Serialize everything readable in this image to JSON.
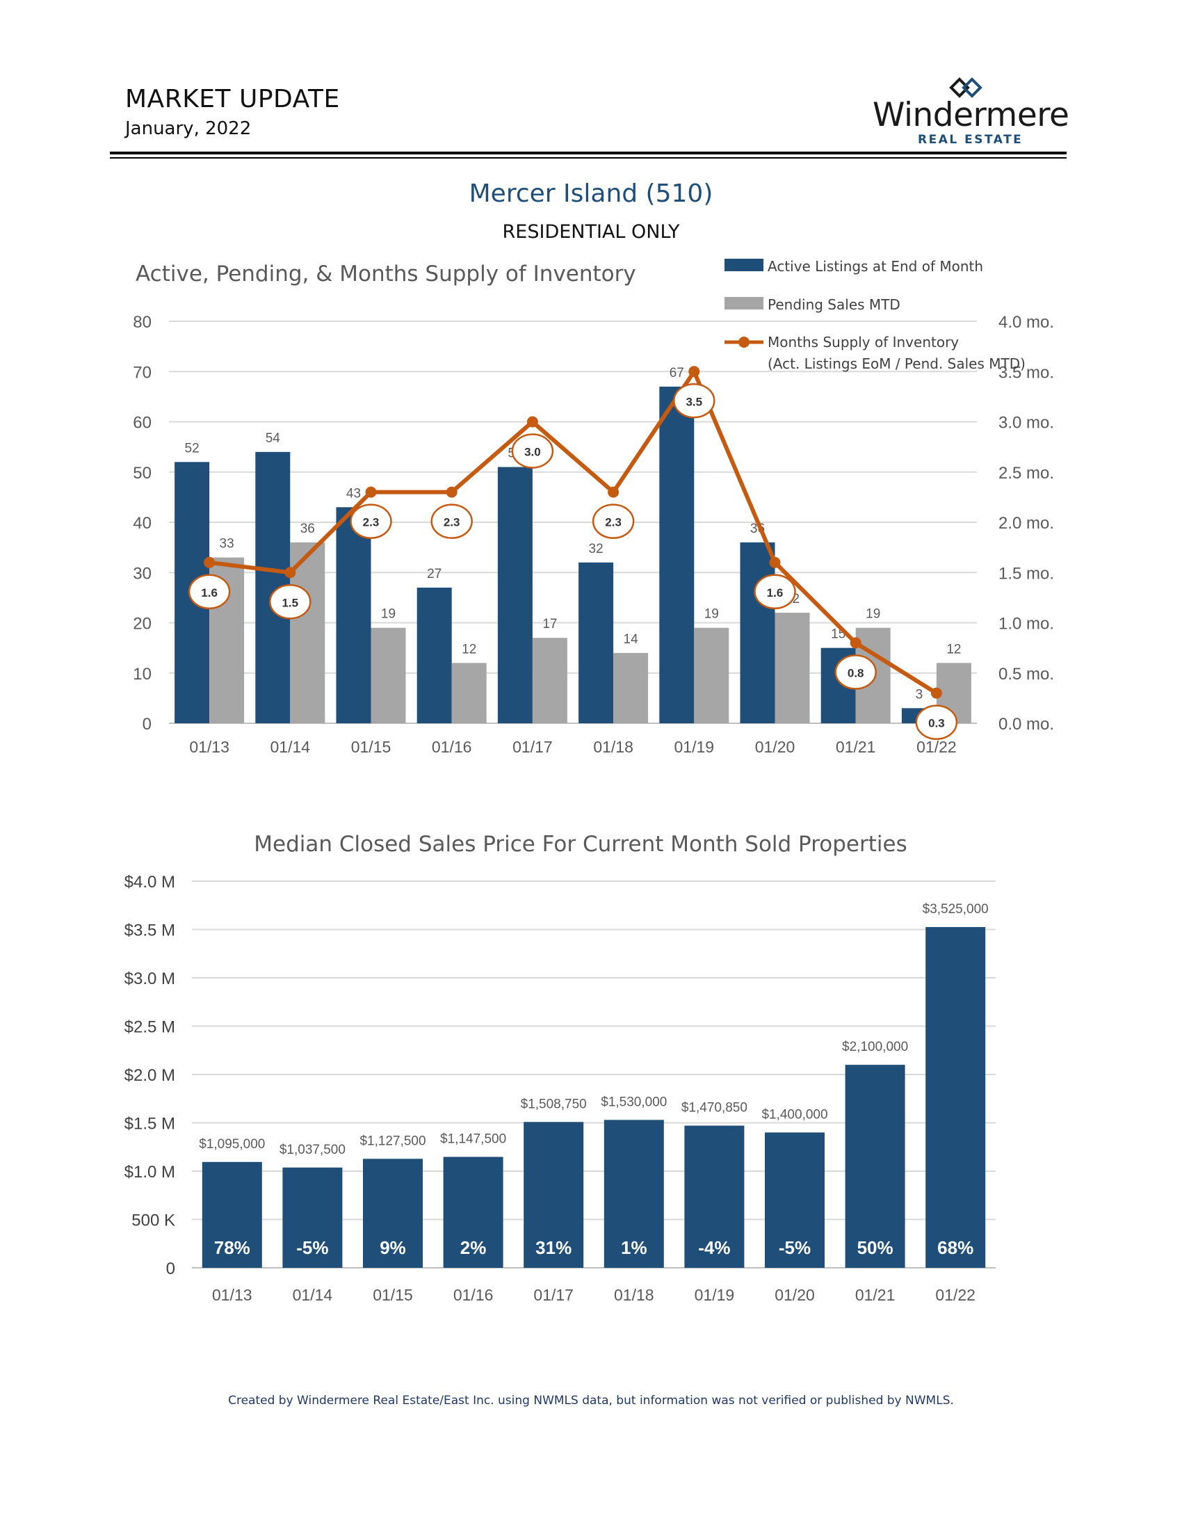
{
  "header": {
    "title": "MARKET UPDATE",
    "date": "January, 2022",
    "brand_name": "Windermere",
    "brand_sub": "REAL ESTATE"
  },
  "region": {
    "title": "Mercer Island (510)",
    "subtitle": "RESIDENTIAL ONLY"
  },
  "colors": {
    "navy": "#1f4e79",
    "gray": "#a6a6a6",
    "orange": "#c55a11",
    "axis_text": "#595959"
  },
  "chart_data": [
    {
      "type": "bar",
      "title": "Active, Pending, & Months Supply of Inventory",
      "categories": [
        "01/13",
        "01/14",
        "01/15",
        "01/16",
        "01/17",
        "01/18",
        "01/19",
        "01/20",
        "01/21",
        "01/22"
      ],
      "series": [
        {
          "name": "Active Listings at End of Month",
          "type": "bar",
          "axis": "left",
          "values": [
            52,
            54,
            43,
            27,
            51,
            32,
            67,
            36,
            15,
            3
          ]
        },
        {
          "name": "Pending Sales MTD",
          "type": "bar",
          "axis": "left",
          "values": [
            33,
            36,
            19,
            12,
            17,
            14,
            19,
            22,
            19,
            12
          ]
        },
        {
          "name": "Months Supply of Inventory",
          "name_line2": "(Act. Listings EoM / Pend. Sales MTD)",
          "type": "line",
          "axis": "right",
          "values": [
            1.6,
            1.5,
            2.3,
            2.3,
            3.0,
            2.3,
            3.5,
            1.6,
            0.8,
            0.3
          ],
          "labels": [
            "1.6",
            "1.5",
            "2.3",
            "2.3",
            "3.0",
            "2.3",
            "3.5",
            "1.6",
            "0.8",
            "0.3"
          ]
        }
      ],
      "ylim_left": [
        0,
        80
      ],
      "yticks_left": [
        "0",
        "10",
        "20",
        "30",
        "40",
        "50",
        "60",
        "70",
        "80"
      ],
      "ylim_right": [
        0,
        4
      ],
      "yticks_right": [
        "0.0 mo.",
        "0.5 mo.",
        "1.0 mo.",
        "1.5 mo.",
        "2.0 mo.",
        "2.5 mo.",
        "3.0 mo.",
        "3.5 mo.",
        "4.0 mo."
      ],
      "grid": true,
      "legend": "top-right"
    },
    {
      "type": "bar",
      "title": "Median Closed Sales Price For Current Month Sold Properties",
      "categories": [
        "01/13",
        "01/14",
        "01/15",
        "01/16",
        "01/17",
        "01/18",
        "01/19",
        "01/20",
        "01/21",
        "01/22"
      ],
      "values": [
        1095000,
        1037500,
        1127500,
        1147500,
        1508750,
        1530000,
        1470850,
        1400000,
        2100000,
        3525000
      ],
      "value_labels": [
        "$1,095,000",
        "$1,037,500",
        "$1,127,500",
        "$1,147,500",
        "$1,508,750",
        "$1,530,000",
        "$1,470,850",
        "$1,400,000",
        "$2,100,000",
        "$3,525,000"
      ],
      "change_labels": [
        "78%",
        "-5%",
        "9%",
        "2%",
        "31%",
        "1%",
        "-4%",
        "-5%",
        "50%",
        "68%"
      ],
      "ylim": [
        0,
        4000000
      ],
      "yticks": [
        "0",
        "500 K",
        "$1.0 M",
        "$1.5 M",
        "$2.0 M",
        "$2.5 M",
        "$3.0 M",
        "$3.5 M",
        "$4.0 M"
      ],
      "grid": true
    }
  ],
  "footer": {
    "note": "Created by Windermere Real Estate/East Inc. using NWMLS data, but information was not verified or published by NWMLS."
  }
}
